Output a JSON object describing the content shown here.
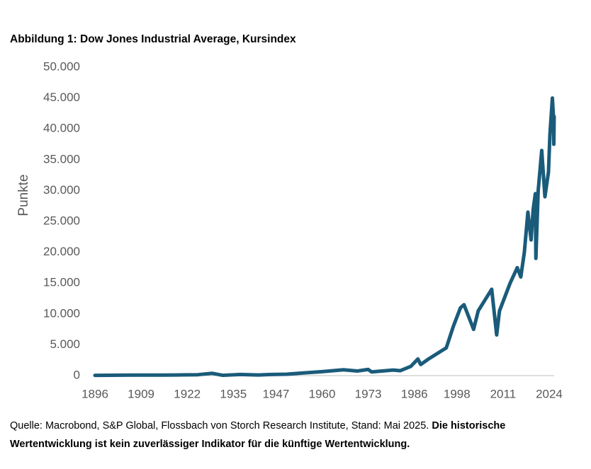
{
  "chart_data": {
    "type": "line",
    "title": "Abbildung 1: Dow Jones Industrial Average, Kursindex",
    "y_label": "Punkte",
    "source": "Quelle: Macrobond, S&P Global, Flossbach von Storch Research Institute, Stand: Mai 2025.",
    "disclaimer": "Die historische Wertentwicklung ist kein zuverlässiger Indikator für die künftige Wertentwicklung.",
    "x": [
      1896,
      1900,
      1906,
      1915,
      1919,
      1925,
      1929,
      1932,
      1937,
      1942,
      1946,
      1950,
      1955,
      1960,
      1966,
      1970,
      1973,
      1974,
      1980,
      1982,
      1985,
      1987,
      1987.8,
      1990,
      1995,
      1997,
      1999,
      2000,
      2002.7,
      2004,
      2007.8,
      2009.2,
      2010,
      2013,
      2015,
      2016,
      2017,
      2018,
      2018.9,
      2019.5,
      2020.1,
      2020.25,
      2020.9,
      2021.9,
      2022.8,
      2023.8,
      2024.2,
      2024.9,
      2025.2,
      2025.3,
      2025.4
    ],
    "series": [
      {
        "name": "Dow Jones Industrial Average",
        "color": "#1a5b7a",
        "values": [
          40,
          60,
          90,
          90,
          100,
          150,
          380,
          50,
          180,
          100,
          190,
          230,
          450,
          650,
          950,
          750,
          1000,
          600,
          900,
          800,
          1500,
          2700,
          1800,
          2700,
          4500,
          8000,
          11000,
          11500,
          7500,
          10500,
          14000,
          6600,
          10500,
          15000,
          17500,
          16000,
          20000,
          26500,
          22000,
          27000,
          29500,
          19000,
          30000,
          36500,
          29000,
          33000,
          39000,
          45000,
          42000,
          37500,
          42000
        ]
      }
    ],
    "xlim": [
      1896,
      2025.4
    ],
    "xticks": [
      1896,
      1909,
      1922,
      1935,
      1947,
      1960,
      1973,
      1986,
      1998,
      2011,
      2024
    ],
    "ylim": [
      0,
      50000
    ],
    "yticks": [
      0,
      {
        "value": 5000,
        "label": "5.000"
      },
      {
        "value": 10000,
        "label": "10.000"
      },
      {
        "value": 15000,
        "label": "15.000"
      },
      {
        "value": 20000,
        "label": "20.000"
      },
      {
        "value": 25000,
        "label": "25.000"
      },
      {
        "value": 30000,
        "label": "30.000"
      },
      {
        "value": 35000,
        "label": "35.000"
      },
      {
        "value": 40000,
        "label": "40.000"
      },
      {
        "value": 45000,
        "label": "45.000"
      },
      {
        "value": 50000,
        "label": "50.000"
      }
    ],
    "grid": false
  }
}
